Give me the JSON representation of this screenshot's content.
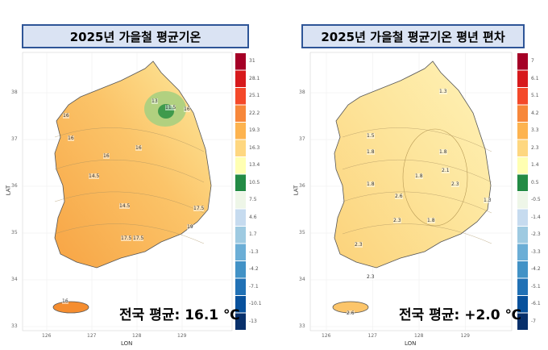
{
  "panels": [
    {
      "title": "2025년 가을철 평균기온",
      "average": "전국 평균: 16.1 ℃",
      "legend": [
        "31",
        "28.1",
        "25.1",
        "22.2",
        "19.3",
        "16.3",
        "13.4",
        "10.5",
        "7.5",
        "4.6",
        "1.7",
        "-1.3",
        "-4.2",
        "-7.1",
        "-10.1",
        "-13"
      ],
      "contour_labels": [
        "13",
        "11.5",
        "16",
        "16",
        "16",
        "16",
        "14.5",
        "16",
        "14.5",
        "17.5",
        "19",
        "17.5",
        "17.5",
        "16"
      ]
    },
    {
      "title": "2025년 가을철 평균기온 평년 편차",
      "average": "전국 평균: +2.0 ℃",
      "legend": [
        "7",
        "6.1",
        "5.1",
        "4.2",
        "3.3",
        "2.3",
        "1.4",
        "0.5",
        "-0.5",
        "-1.4",
        "-2.3",
        "-3.3",
        "-4.2",
        "-5.1",
        "-6.1",
        "-7"
      ],
      "contour_labels": [
        "1.3",
        "1.5",
        "1.8",
        "1.8",
        "2.1",
        "1.8",
        "2.3",
        "1.8",
        "2.6",
        "2.3",
        "1.8",
        "2.3",
        "1.3",
        "2.3",
        "2.6"
      ]
    }
  ],
  "axes": {
    "x_label": "LON",
    "y_label": "LAT",
    "x_ticks": [
      "126",
      "127",
      "128",
      "129"
    ],
    "y_ticks": [
      "38",
      "37",
      "36",
      "35",
      "34",
      "33"
    ]
  },
  "legend_colors": [
    "#a50026",
    "#d7191c",
    "#f4492a",
    "#f7873a",
    "#fdb34f",
    "#fed780",
    "#ffffb2",
    "#238b45",
    "#eef6e8",
    "#c6dbef",
    "#9ecae1",
    "#6baed6",
    "#4292c6",
    "#2171b5",
    "#08519c",
    "#08306b"
  ]
}
